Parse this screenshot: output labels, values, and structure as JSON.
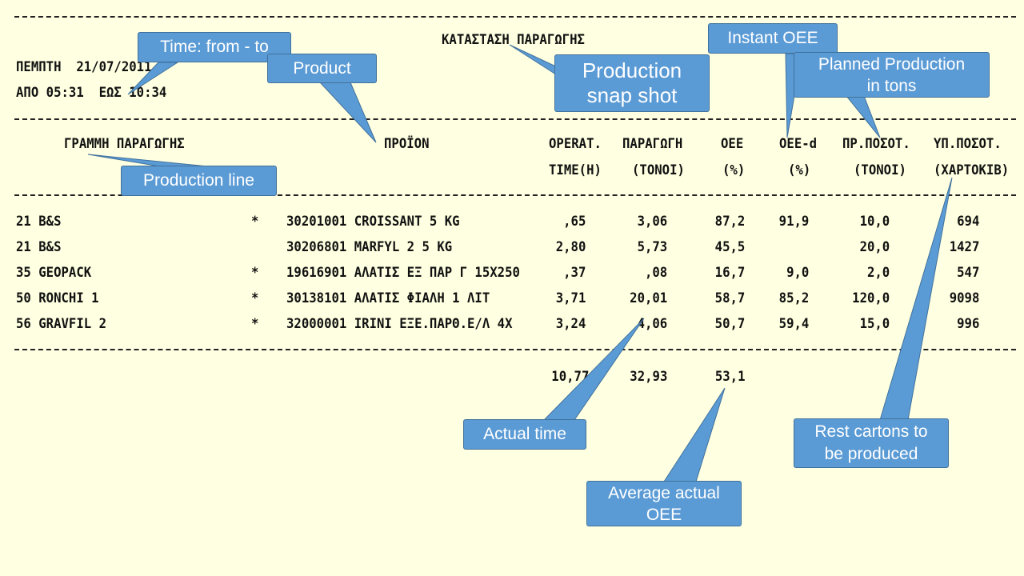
{
  "report": {
    "title": "ΚΑΤΑΣΤΑΣΗ ΠΑΡΑΓΩΓΗΣ",
    "date_line": "ΠΕΜΠΤΗ  21/07/2011",
    "time_line": "ΑΠΟ 05:31  ΕΩΣ 10:34",
    "separator": "------------------------------------------------------------------------------------------------------------------------"
  },
  "columns": {
    "line": "ΓΡΑΜΜΗ ΠΑΡΑΓΩΓΗΣ",
    "product": "ΠΡΟΪΟΝ",
    "oper_1": "OPERAT.",
    "oper_2": "TIME(H)",
    "prod_1": "ΠΑΡΑΓΩΓΗ",
    "prod_2": "(ΤΟΝΟΙ)",
    "oee_1": "OEE",
    "oee_2": "(%)",
    "oeed_1": "OEE-d",
    "oeed_2": "(%)",
    "plan_1": "ΠΡ.ΠΟΣΟΤ.",
    "plan_2": "(ΤΟΝΟΙ)",
    "rest_1": "ΥΠ.ΠΟΣΟΤ.",
    "rest_2": "(ΧΑΡΤΟΚΙΒ)"
  },
  "rows": [
    {
      "line": "21 B&S",
      "star": "*",
      "product": "30201001 CROISSANT 5 KG",
      "time": ",65",
      "prod": "3,06",
      "oee": "87,2",
      "oeed": "91,9",
      "plan": "10,0",
      "rest": "694"
    },
    {
      "line": "21 B&S",
      "star": "",
      "product": "30206801 MARFYL 2 5 KG",
      "time": "2,80",
      "prod": "5,73",
      "oee": "45,5",
      "oeed": "",
      "plan": "20,0",
      "rest": "1427"
    },
    {
      "line": "35 GEOPACK",
      "star": "*",
      "product": "19616901 ΑΛΑΤΙΣ ΕΞ ΠΑΡ Γ 15X250",
      "time": ",37",
      "prod": ",08",
      "oee": "16,7",
      "oeed": "9,0",
      "plan": "2,0",
      "rest": "547"
    },
    {
      "line": "50 RONCHI 1",
      "star": "*",
      "product": "30138101 ΑΛΑΤΙΣ ΦΙΑΛΗ 1 ΛΙΤ",
      "time": "3,71",
      "prod": "20,01",
      "oee": "58,7",
      "oeed": "85,2",
      "plan": "120,0",
      "rest": "9098"
    },
    {
      "line": "56 GRAVFIL 2",
      "star": "*",
      "product": "32000001 IRINI ΕΞΕ.ΠΑΡΘ.Ε/Λ 4X",
      "time": "3,24",
      "prod": "4,06",
      "oee": "50,7",
      "oeed": "59,4",
      "plan": "15,0",
      "rest": "996"
    }
  ],
  "totals": {
    "time": "10,77",
    "prod": "32,93",
    "oee": "53,1"
  },
  "callouts": {
    "time_range": "Time: from - to",
    "product": "Product",
    "snapshot": "Production\nsnap shot",
    "instant_oee": "Instant OEE",
    "planned": "Planned Production\nin tons",
    "line": "Production line",
    "actual_time": "Actual time",
    "avg_oee": "Average actual\nOEE",
    "rest_cartons": "Rest cartons to\nbe produced"
  },
  "colors": {
    "background": "#ffffe1",
    "callout_fill": "#5b9bd5",
    "callout_border": "#41719c"
  }
}
